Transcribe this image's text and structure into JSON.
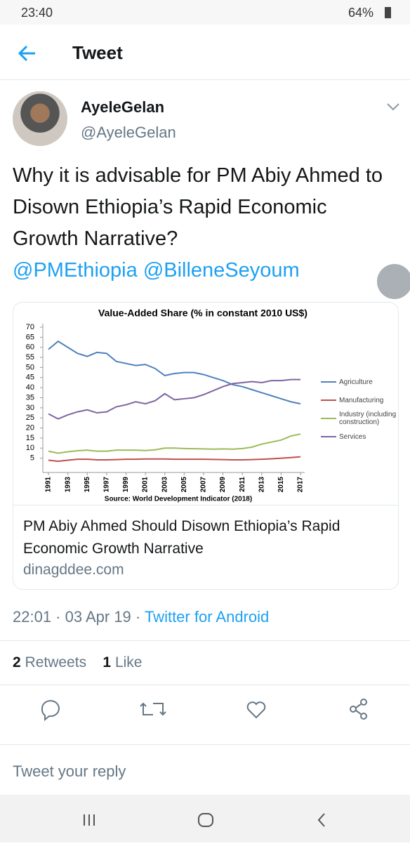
{
  "status_bar": {
    "time": "23:40",
    "battery": "64%"
  },
  "header": {
    "title": "Tweet"
  },
  "tweet": {
    "name": "AyeleGelan",
    "handle": "@AyeleGelan",
    "text": "Why it is advisable for PM Abiy Ahmed to Disown Ethiopia’s Rapid Economic Growth Narrative?",
    "mentions": [
      "@PMEthiopia",
      "@BilleneSeyoum"
    ],
    "card": {
      "title": "PM Abiy Ahmed Should Disown Ethiopia’s Rapid Economic Growth Narrative",
      "domain": "dinagddee.com"
    },
    "timestamp": "22:01 · 03 Apr 19 ·",
    "source": "Twitter for Android",
    "retweets": 2,
    "retweets_label": "Retweets",
    "likes": 1,
    "likes_label": "Like"
  },
  "reply_placeholder": "Tweet your reply",
  "chart_data": {
    "type": "line",
    "title": "Value-Added Share (% in constant 2010 US$)",
    "source": "Source: World Development Indicator (2018)",
    "x": [
      1991,
      1992,
      1993,
      1994,
      1995,
      1996,
      1997,
      1998,
      1999,
      2000,
      2001,
      2002,
      2003,
      2004,
      2005,
      2006,
      2007,
      2008,
      2009,
      2010,
      2011,
      2012,
      2013,
      2014,
      2015,
      2016,
      2017
    ],
    "xlim": [
      1991,
      2017
    ],
    "xticks": [
      1991,
      1993,
      1995,
      1997,
      1999,
      2001,
      2003,
      2005,
      2007,
      2009,
      2011,
      2013,
      2015,
      2017
    ],
    "ylim": [
      0,
      70
    ],
    "yticks": [
      5,
      10,
      15,
      20,
      25,
      30,
      35,
      40,
      45,
      50,
      55,
      60,
      65,
      70
    ],
    "series": [
      {
        "name": "Agriculture",
        "color": "#4f81bd",
        "values": [
          59,
          63,
          60,
          57,
          55.5,
          57.5,
          57,
          53,
          52,
          51,
          51.5,
          49.5,
          46,
          47,
          47.5,
          47.5,
          46.5,
          45,
          43.5,
          41.5,
          40.5,
          39,
          37.5,
          36,
          34.5,
          33,
          32
        ]
      },
      {
        "name": "Manufacturing",
        "color": "#c0504d",
        "values": [
          4,
          3.5,
          4,
          4.5,
          4.5,
          4.2,
          4.2,
          4.3,
          4.5,
          4.5,
          4.6,
          4.6,
          4.6,
          4.5,
          4.5,
          4.5,
          4.5,
          4.4,
          4.3,
          4.2,
          4.2,
          4.3,
          4.5,
          4.7,
          5,
          5.3,
          5.7
        ]
      },
      {
        "name": "Industry (including construction)",
        "color": "#9bbb59",
        "values": [
          8.5,
          7.5,
          8.2,
          8.7,
          9,
          8.5,
          8.5,
          9,
          9,
          9,
          8.8,
          9.2,
          10,
          10,
          9.8,
          9.7,
          9.6,
          9.5,
          9.6,
          9.5,
          9.8,
          10.5,
          12,
          13,
          14,
          16,
          17
        ]
      },
      {
        "name": "Services",
        "color": "#8064a2",
        "values": [
          27,
          24.5,
          26.5,
          28,
          29,
          27.5,
          28,
          30.5,
          31.5,
          33,
          32,
          33.5,
          37,
          34,
          34.5,
          35,
          36.5,
          38.5,
          40.5,
          42,
          42.5,
          43,
          42.5,
          43.5,
          43.5,
          44,
          44
        ]
      }
    ]
  }
}
